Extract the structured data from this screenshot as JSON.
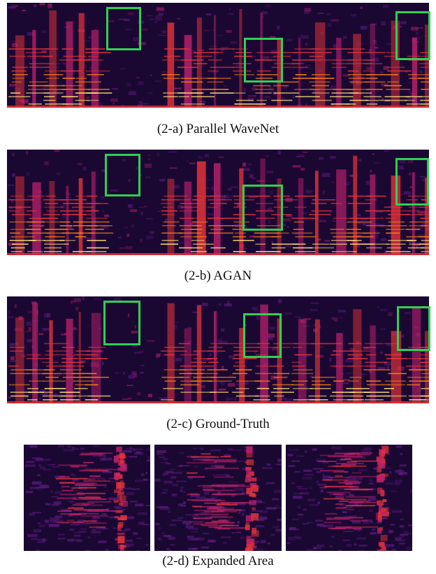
{
  "figure": {
    "panels": [
      {
        "id": "a",
        "caption": "(2-a) Parallel WaveNet"
      },
      {
        "id": "b",
        "caption": "(2-b) AGAN"
      },
      {
        "id": "c",
        "caption": "(2-c) Ground-Truth"
      }
    ],
    "expanded": {
      "caption": "(2-d) Expanded Area"
    }
  },
  "colors": {
    "background_dark": "#1a0833",
    "purple": "#5a1a7a",
    "magenta": "#b8206a",
    "red": "#e2333a",
    "orange": "#f57d15",
    "yellow": "#ffe27a",
    "highlight_box": "#2fd052"
  }
}
